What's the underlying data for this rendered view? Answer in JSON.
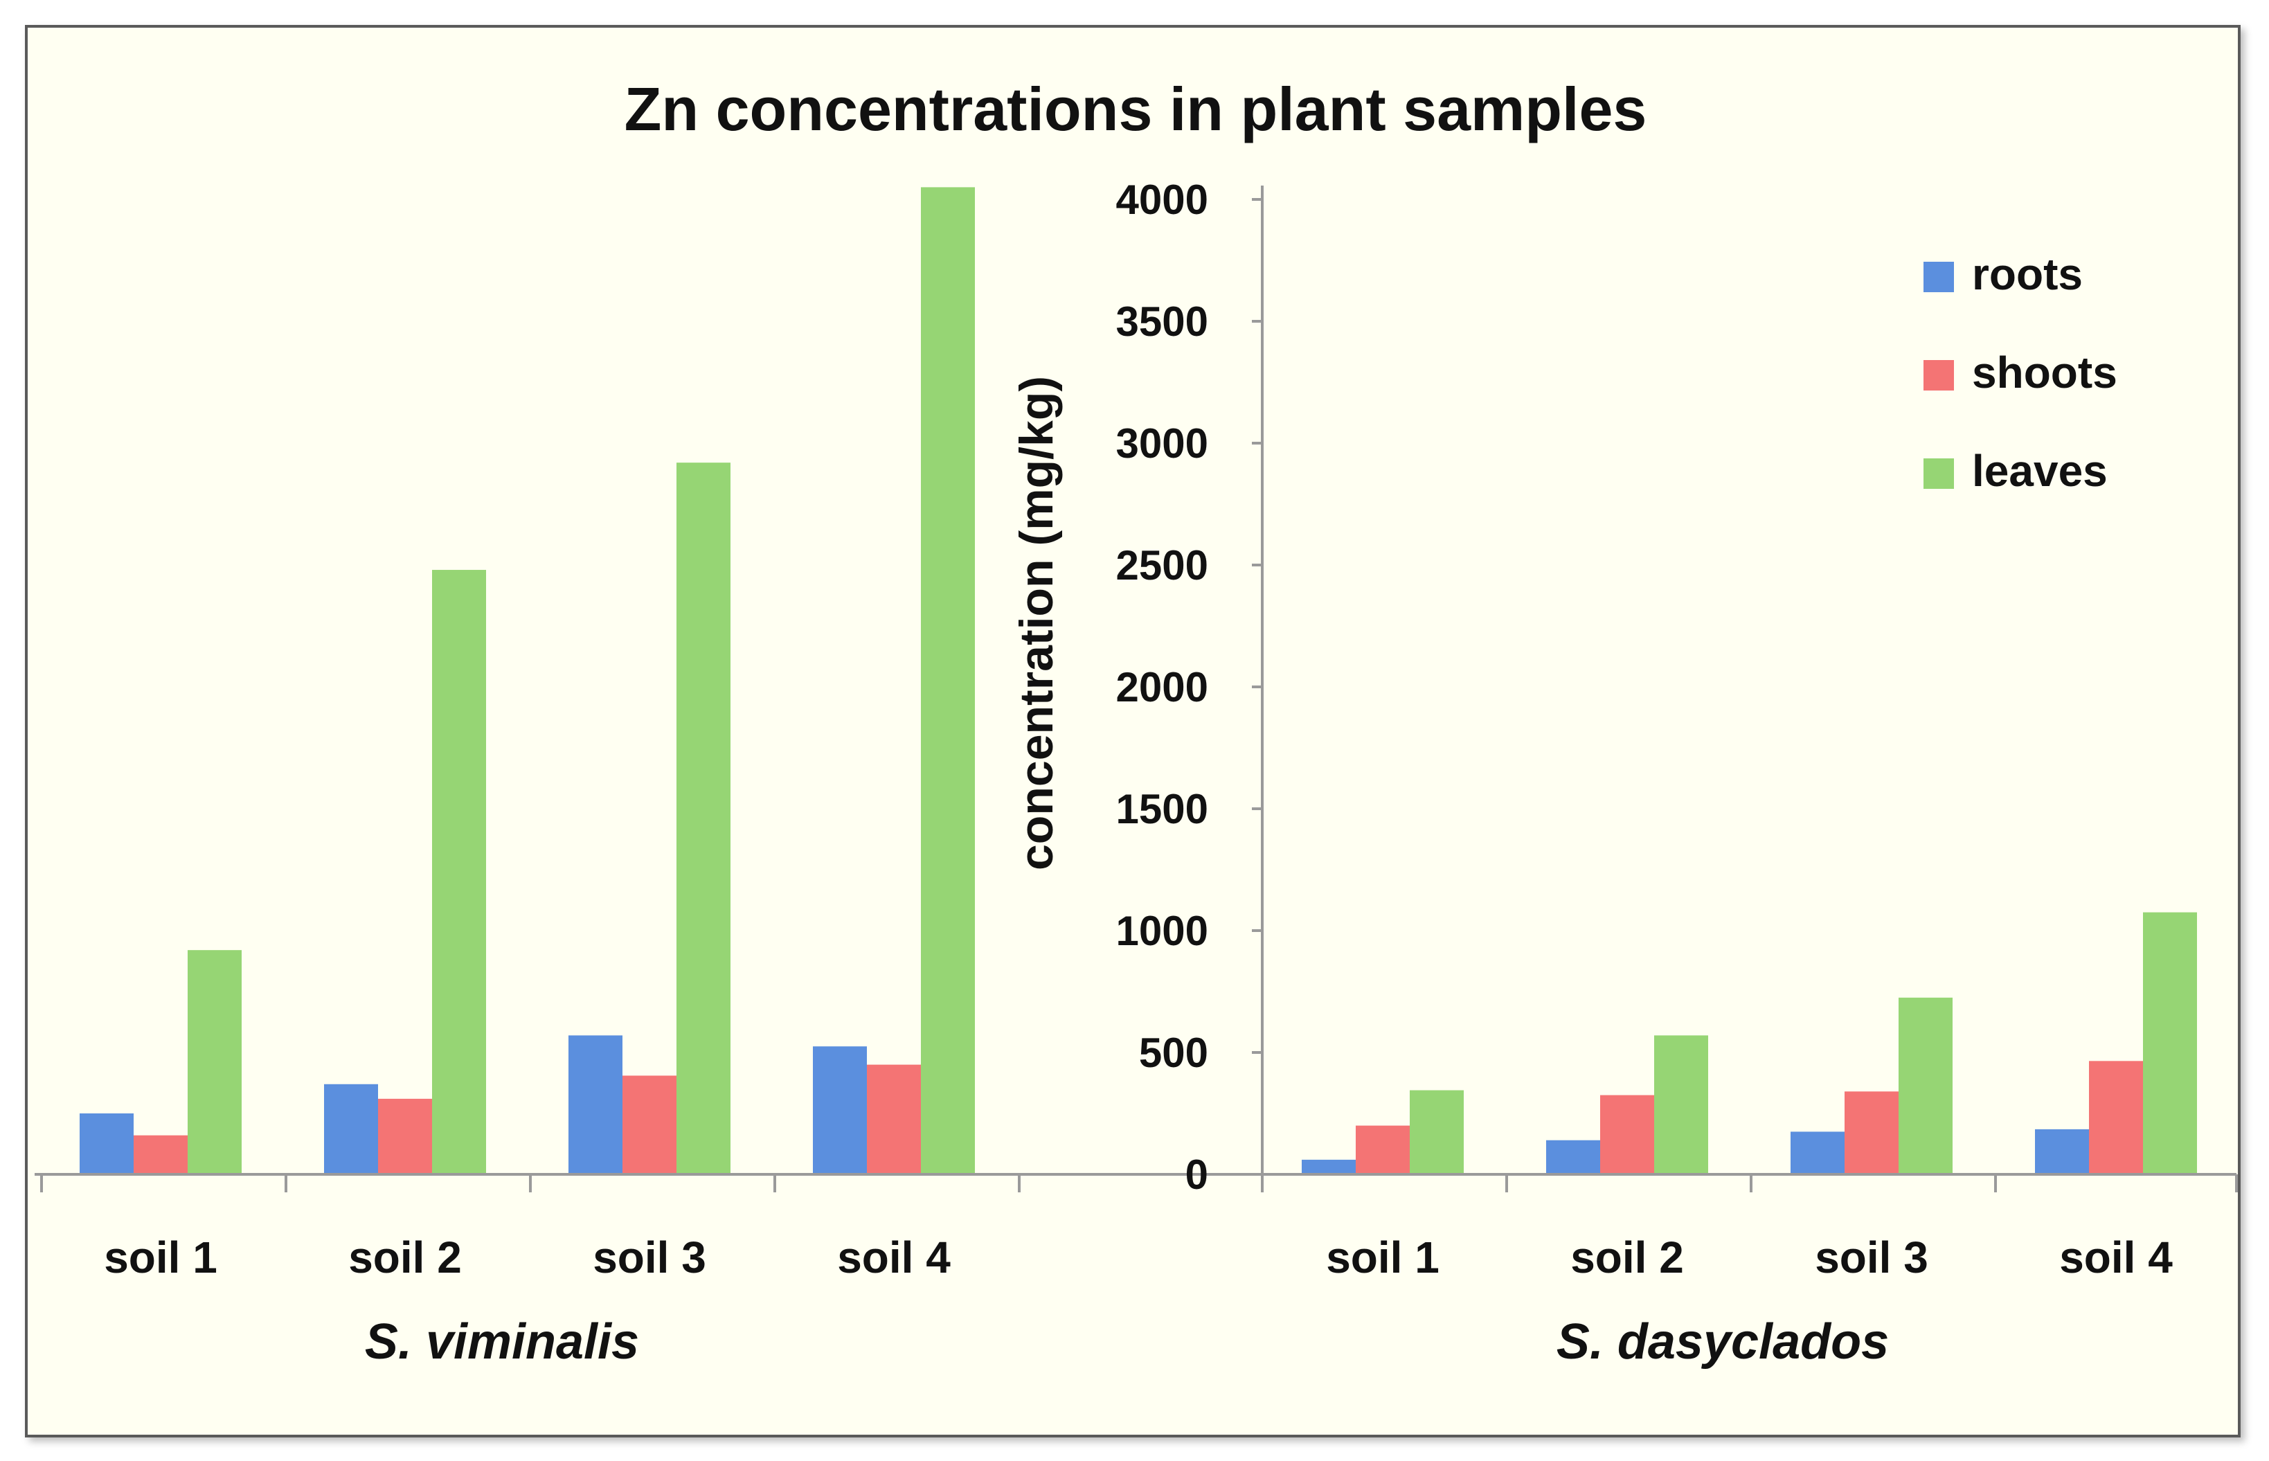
{
  "chart_data": {
    "type": "bar",
    "title": "Zn concentrations in plant samples",
    "ylabel": "concentration (mg/kg)",
    "xlabel": "",
    "ylim": [
      0,
      4000
    ],
    "yticks": [
      0,
      500,
      1000,
      1500,
      2000,
      2500,
      3000,
      3500,
      4000
    ],
    "legend_position": "top-right",
    "series_colors": {
      "roots": "#5b8fde",
      "shoots": "#f47474",
      "leaves": "#96d574"
    },
    "groups": [
      {
        "name": "S. viminalis",
        "categories": [
          "soil 1",
          "soil 2",
          "soil 3",
          "soil 4"
        ],
        "series": [
          {
            "name": "roots",
            "values": [
              250,
              370,
              570,
              525
            ]
          },
          {
            "name": "shoots",
            "values": [
              160,
              310,
              405,
              450
            ]
          },
          {
            "name": "leaves",
            "values": [
              920,
              2480,
              2920,
              4050
            ]
          }
        ]
      },
      {
        "name": "S. dasyclados",
        "categories": [
          "soil 1",
          "soil 2",
          "soil 3",
          "soil 4"
        ],
        "series": [
          {
            "name": "roots",
            "values": [
              60,
              140,
              175,
              185
            ]
          },
          {
            "name": "shoots",
            "values": [
              200,
              325,
              340,
              465
            ]
          },
          {
            "name": "leaves",
            "values": [
              345,
              570,
              725,
              1075
            ]
          }
        ]
      }
    ]
  }
}
